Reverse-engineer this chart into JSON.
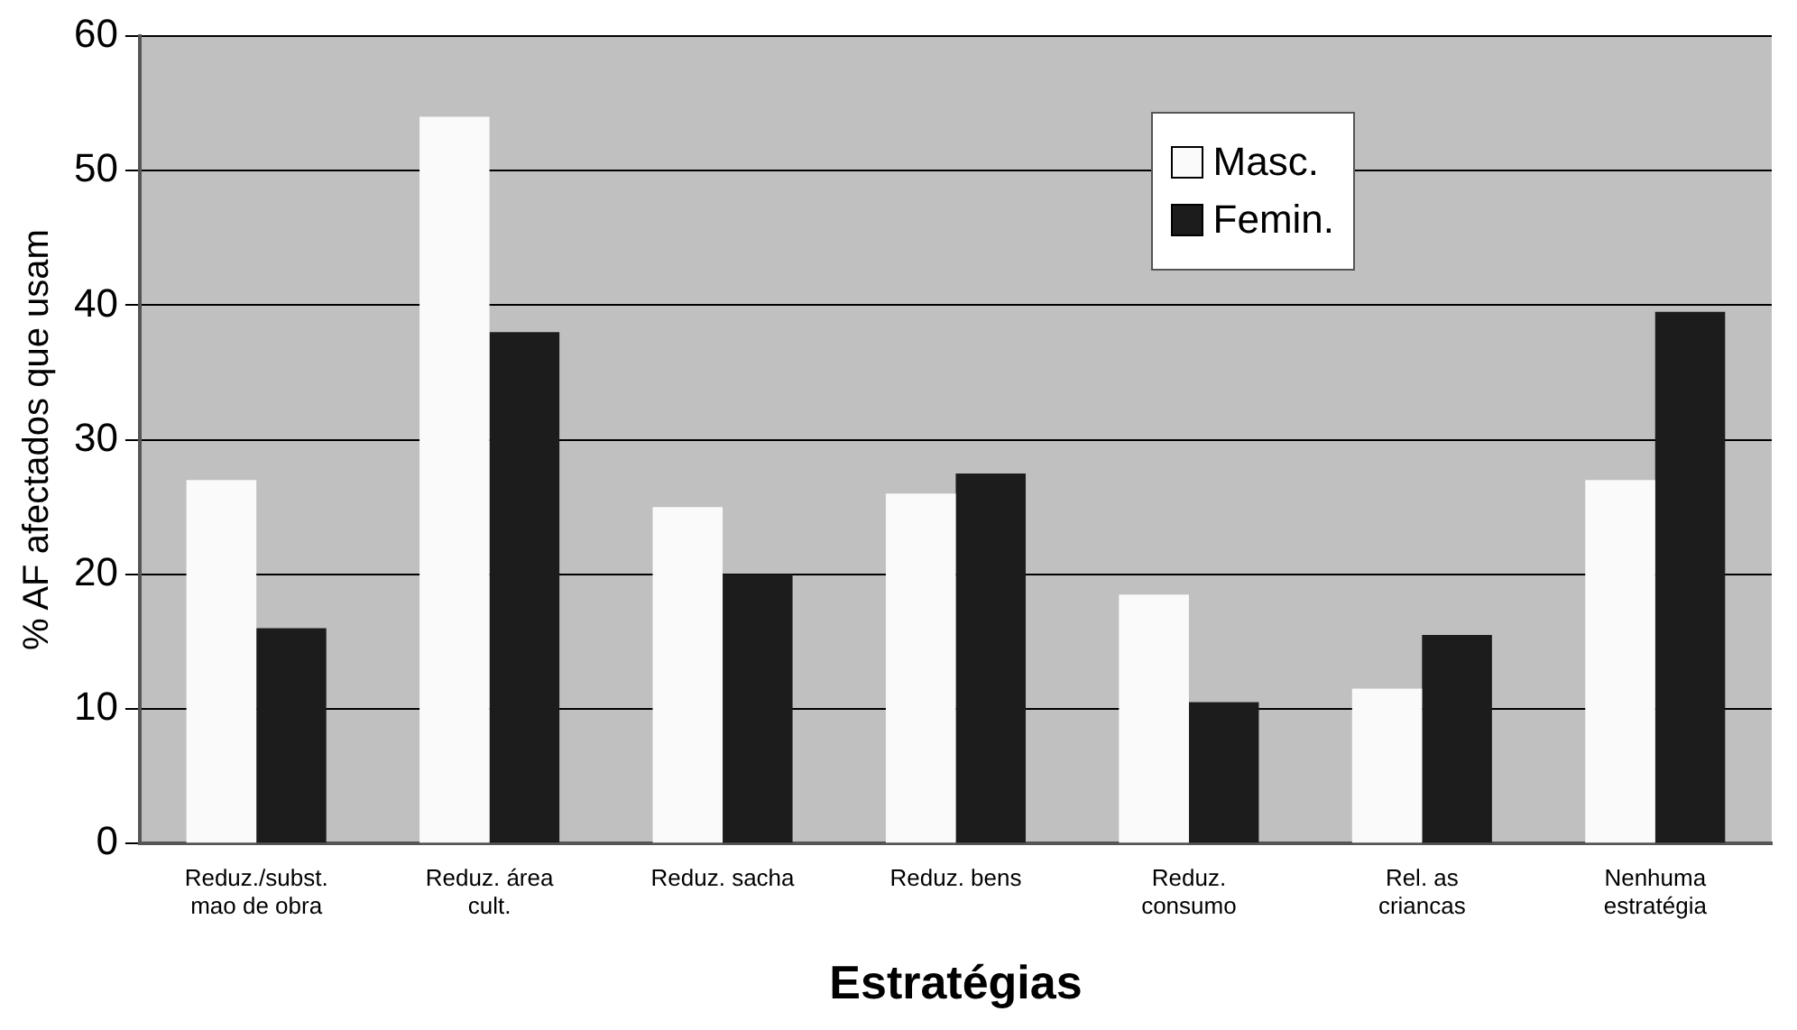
{
  "chart_data": {
    "type": "bar",
    "xlabel": "Estratégias",
    "ylabel": "% AF afectados que usam",
    "categories": [
      "Reduz./subst.\nmao de obra",
      "Reduz. área\ncult.",
      "Reduz. sacha",
      "Reduz. bens",
      "Reduz.\nconsumo",
      "Rel. as\ncriancas",
      "Nenhuma\nestratégia"
    ],
    "series": [
      {
        "name": "Masc.",
        "color": "#fafafa",
        "values": [
          27,
          54,
          25,
          26,
          18.5,
          11.5,
          27
        ]
      },
      {
        "name": "Femin.",
        "color": "#1c1c1c",
        "values": [
          16,
          38,
          20,
          27.5,
          10.5,
          15.5,
          39.5
        ]
      }
    ],
    "ylim": [
      0,
      60
    ],
    "yticks": [
      0,
      10,
      20,
      30,
      40,
      50,
      60
    ],
    "grid": "y",
    "legend": "top right"
  }
}
